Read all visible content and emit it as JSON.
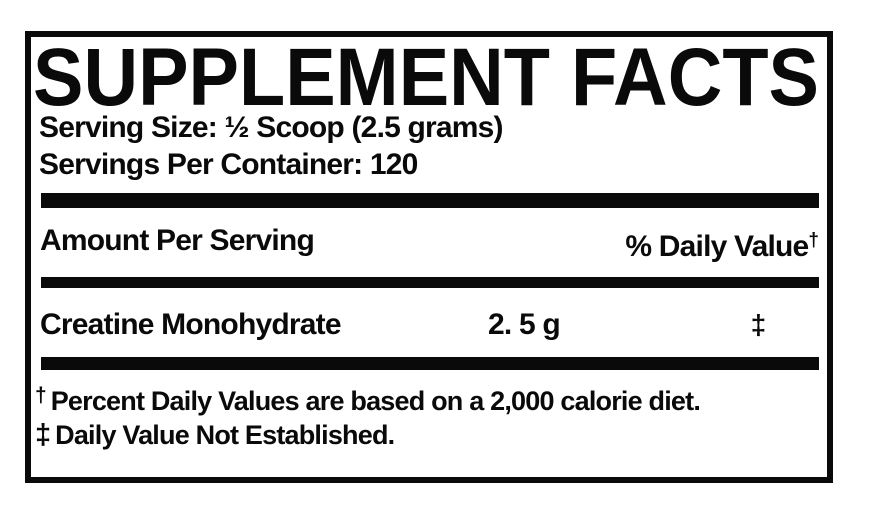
{
  "label": {
    "title": "SUPPLEMENT FACTS",
    "serving_size": "Serving Size: ½ Scoop (2.5 grams)",
    "servings_per_container": "Servings Per Container: 120",
    "columns": {
      "amount_per_serving": "Amount Per Serving",
      "daily_value": "% Daily Value",
      "daily_value_sup": "†"
    },
    "rows": [
      {
        "name": "Creatine Monohydrate",
        "amount": "2. 5 g",
        "daily_value": "‡"
      }
    ],
    "footnotes": [
      {
        "symbol": "†",
        "text": "Percent Daily Values are based on a 2,000 calorie diet."
      },
      {
        "symbol": "‡",
        "text": "Daily Value Not Established."
      }
    ],
    "colors": {
      "ink": "#0a0a0a",
      "background": "#ffffff"
    }
  }
}
